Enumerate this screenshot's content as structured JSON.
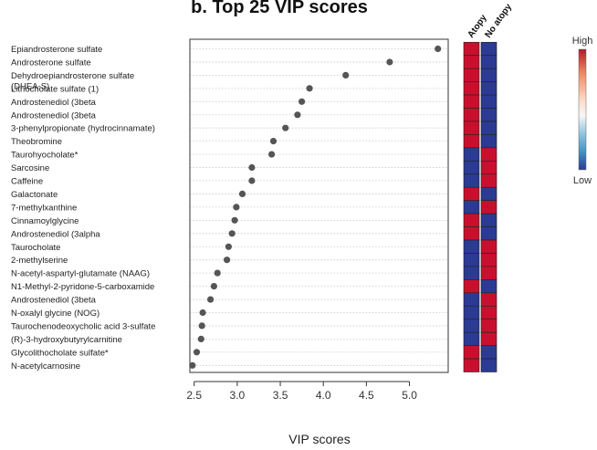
{
  "chart_data": {
    "type": "scatter",
    "title": "b. Top 25 VIP scores",
    "xlabel": "VIP scores",
    "ylabel": "",
    "xlim": [
      2.45,
      5.45
    ],
    "xticks": [
      "2.5",
      "3.0",
      "3.5",
      "4.0",
      "4.5",
      "5.0"
    ],
    "xtick_values": [
      2.5,
      3.0,
      3.5,
      4.0,
      4.5,
      5.0
    ],
    "grid": "horizontal dotted",
    "point_color": "#555555",
    "categories": [
      "Epiandrosterone sulfate",
      "Androsterone sulfate",
      "Dehydroepiandrosterone sulfate\n(DHEA-S)",
      "Lithocholate sulfate (1)",
      "Androstenediol (3beta",
      "Androstenediol (3beta",
      "3-phenylpropionate (hydrocinnamate)",
      "Theobromine",
      "Taurohyocholate*",
      "Sarcosine",
      "Caffeine",
      "Galactonate",
      "7-methylxanthine",
      "Cinnamoylglycine",
      "Androstenediol (3alpha",
      "Taurocholate",
      "2-methylserine",
      "N-acetyl-aspartyl-glutamate (NAAG)",
      "N1-Methyl-2-pyridone-5-carboxamide",
      "Androstenediol (3beta",
      "N-oxalyl glycine (NOG)",
      "Taurochenodeoxycholic acid 3-sulfate",
      "(R)-3-hydroxybutyrylcarnitine",
      "Glycolithocholate sulfate*",
      "N-acetylcarnosine"
    ],
    "values": [
      5.33,
      4.77,
      4.26,
      3.84,
      3.75,
      3.7,
      3.56,
      3.42,
      3.4,
      3.17,
      3.17,
      3.06,
      2.99,
      2.97,
      2.94,
      2.9,
      2.88,
      2.77,
      2.73,
      2.69,
      2.6,
      2.59,
      2.58,
      2.53,
      2.48
    ],
    "heatmap": {
      "columns": [
        "Atopy",
        "No atopy"
      ],
      "high_color": "#c8102e",
      "low_color": "#2b3a93",
      "levels": [
        [
          "high",
          "low"
        ],
        [
          "high",
          "low"
        ],
        [
          "high",
          "low"
        ],
        [
          "high",
          "low"
        ],
        [
          "high",
          "low"
        ],
        [
          "high",
          "low"
        ],
        [
          "high",
          "low"
        ],
        [
          "high",
          "low"
        ],
        [
          "low",
          "high"
        ],
        [
          "low",
          "high"
        ],
        [
          "low",
          "high"
        ],
        [
          "high",
          "low"
        ],
        [
          "low",
          "high"
        ],
        [
          "high",
          "low"
        ],
        [
          "high",
          "low"
        ],
        [
          "low",
          "high"
        ],
        [
          "low",
          "high"
        ],
        [
          "low",
          "high"
        ],
        [
          "high",
          "low"
        ],
        [
          "low",
          "high"
        ],
        [
          "low",
          "high"
        ],
        [
          "low",
          "high"
        ],
        [
          "low",
          "high"
        ],
        [
          "high",
          "low"
        ],
        [
          "high",
          "low"
        ]
      ],
      "legend_high": "High",
      "legend_low": "Low"
    }
  }
}
